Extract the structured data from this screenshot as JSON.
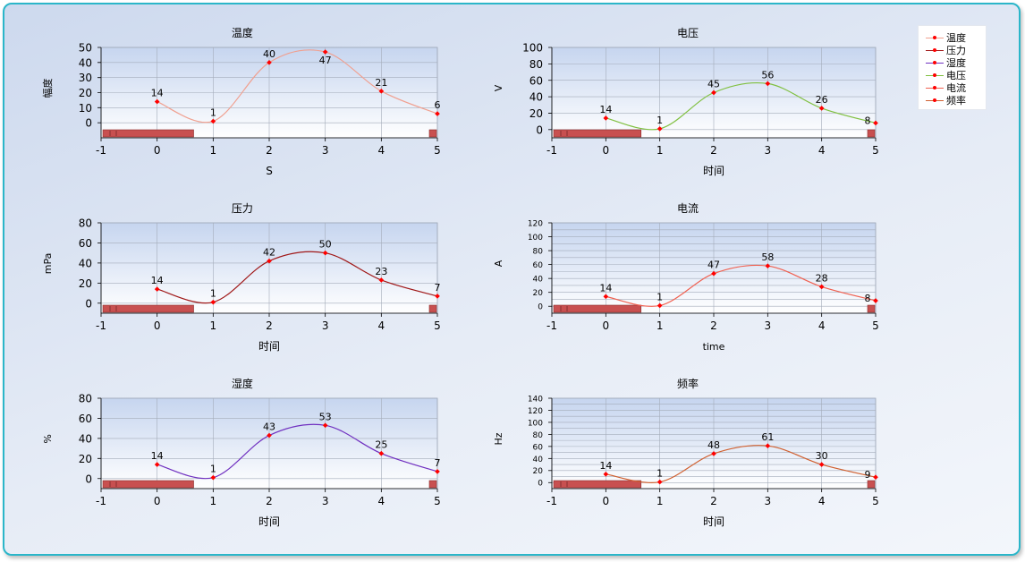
{
  "legend": {
    "items": [
      {
        "label": "温度",
        "color": "#f0a090"
      },
      {
        "label": "压力",
        "color": "#a01818"
      },
      {
        "label": "湿度",
        "color": "#7030c0"
      },
      {
        "label": "电压",
        "color": "#80c040"
      },
      {
        "label": "电流",
        "color": "#f06050"
      },
      {
        "label": "频率",
        "color": "#d06030"
      }
    ]
  },
  "chart_data": [
    {
      "type": "line",
      "title": "温度",
      "xlabel": "S",
      "ylabel": "幅度",
      "x": [
        0,
        1,
        2,
        3,
        4,
        5
      ],
      "values": [
        14,
        1,
        40,
        47,
        21,
        6
      ],
      "xlim": [
        -1,
        5
      ],
      "ylim": [
        0,
        50
      ],
      "ymin_view": -10,
      "yticks": [
        0,
        10,
        20,
        30,
        40,
        50
      ],
      "xticks": [
        -1,
        0,
        1,
        2,
        3,
        4,
        5
      ],
      "color": "#f0a090",
      "grid": true
    },
    {
      "type": "line",
      "title": "电压",
      "xlabel": "时间",
      "ylabel": "V",
      "x": [
        0,
        1,
        2,
        3,
        4,
        5
      ],
      "values": [
        14,
        1,
        45,
        56,
        26,
        8
      ],
      "xlim": [
        -1,
        5
      ],
      "ylim": [
        0,
        100
      ],
      "ymin_view": -10,
      "yticks": [
        0,
        20,
        40,
        60,
        80,
        100
      ],
      "xticks": [
        -1,
        0,
        1,
        2,
        3,
        4,
        5
      ],
      "color": "#80c040",
      "grid": true
    },
    {
      "type": "line",
      "title": "压力",
      "xlabel": "时间",
      "ylabel": "mPa",
      "x": [
        0,
        1,
        2,
        3,
        4,
        5
      ],
      "values": [
        14,
        1,
        42,
        50,
        23,
        7
      ],
      "xlim": [
        -1,
        5
      ],
      "ylim": [
        0,
        80
      ],
      "ymin_view": -10,
      "yticks": [
        0,
        20,
        40,
        60,
        80
      ],
      "xticks": [
        -1,
        0,
        1,
        2,
        3,
        4,
        5
      ],
      "color": "#a01818",
      "grid": true
    },
    {
      "type": "line",
      "title": "电流",
      "xlabel": "time",
      "ylabel": "A",
      "x": [
        0,
        1,
        2,
        3,
        4,
        5
      ],
      "values": [
        14,
        1,
        47,
        58,
        28,
        8
      ],
      "xlim": [
        -1,
        5
      ],
      "ylim": [
        0,
        120
      ],
      "ymin_view": -10,
      "yticks": [
        0,
        10,
        20,
        30,
        40,
        50,
        60,
        70,
        80,
        90,
        100,
        110,
        120
      ],
      "ytick_labels": [
        0,
        20,
        40,
        60,
        80,
        100,
        120
      ],
      "xticks": [
        -1,
        0,
        1,
        2,
        3,
        4,
        5
      ],
      "color": "#f06050",
      "grid": true
    },
    {
      "type": "line",
      "title": "湿度",
      "xlabel": "时间",
      "ylabel": "%",
      "x": [
        0,
        1,
        2,
        3,
        4,
        5
      ],
      "values": [
        14,
        1,
        43,
        53,
        25,
        7
      ],
      "xlim": [
        -1,
        5
      ],
      "ylim": [
        0,
        80
      ],
      "ymin_view": -10,
      "yticks": [
        0,
        20,
        40,
        60,
        80
      ],
      "xticks": [
        -1,
        0,
        1,
        2,
        3,
        4,
        5
      ],
      "color": "#7030c0",
      "grid": true
    },
    {
      "type": "line",
      "title": "频率",
      "xlabel": "时间",
      "ylabel": "Hz",
      "x": [
        0,
        1,
        2,
        3,
        4,
        5
      ],
      "values": [
        14,
        1,
        48,
        61,
        30,
        9
      ],
      "xlim": [
        -1,
        5
      ],
      "ylim": [
        0,
        140
      ],
      "ymin_view": -10,
      "yticks": [
        0,
        10,
        20,
        30,
        40,
        50,
        60,
        70,
        80,
        90,
        100,
        110,
        120,
        130,
        140
      ],
      "ytick_labels": [
        0,
        20,
        40,
        60,
        80,
        100,
        120,
        140
      ],
      "xticks": [
        -1,
        0,
        1,
        2,
        3,
        4,
        5
      ],
      "color": "#d06030",
      "grid": true
    }
  ]
}
